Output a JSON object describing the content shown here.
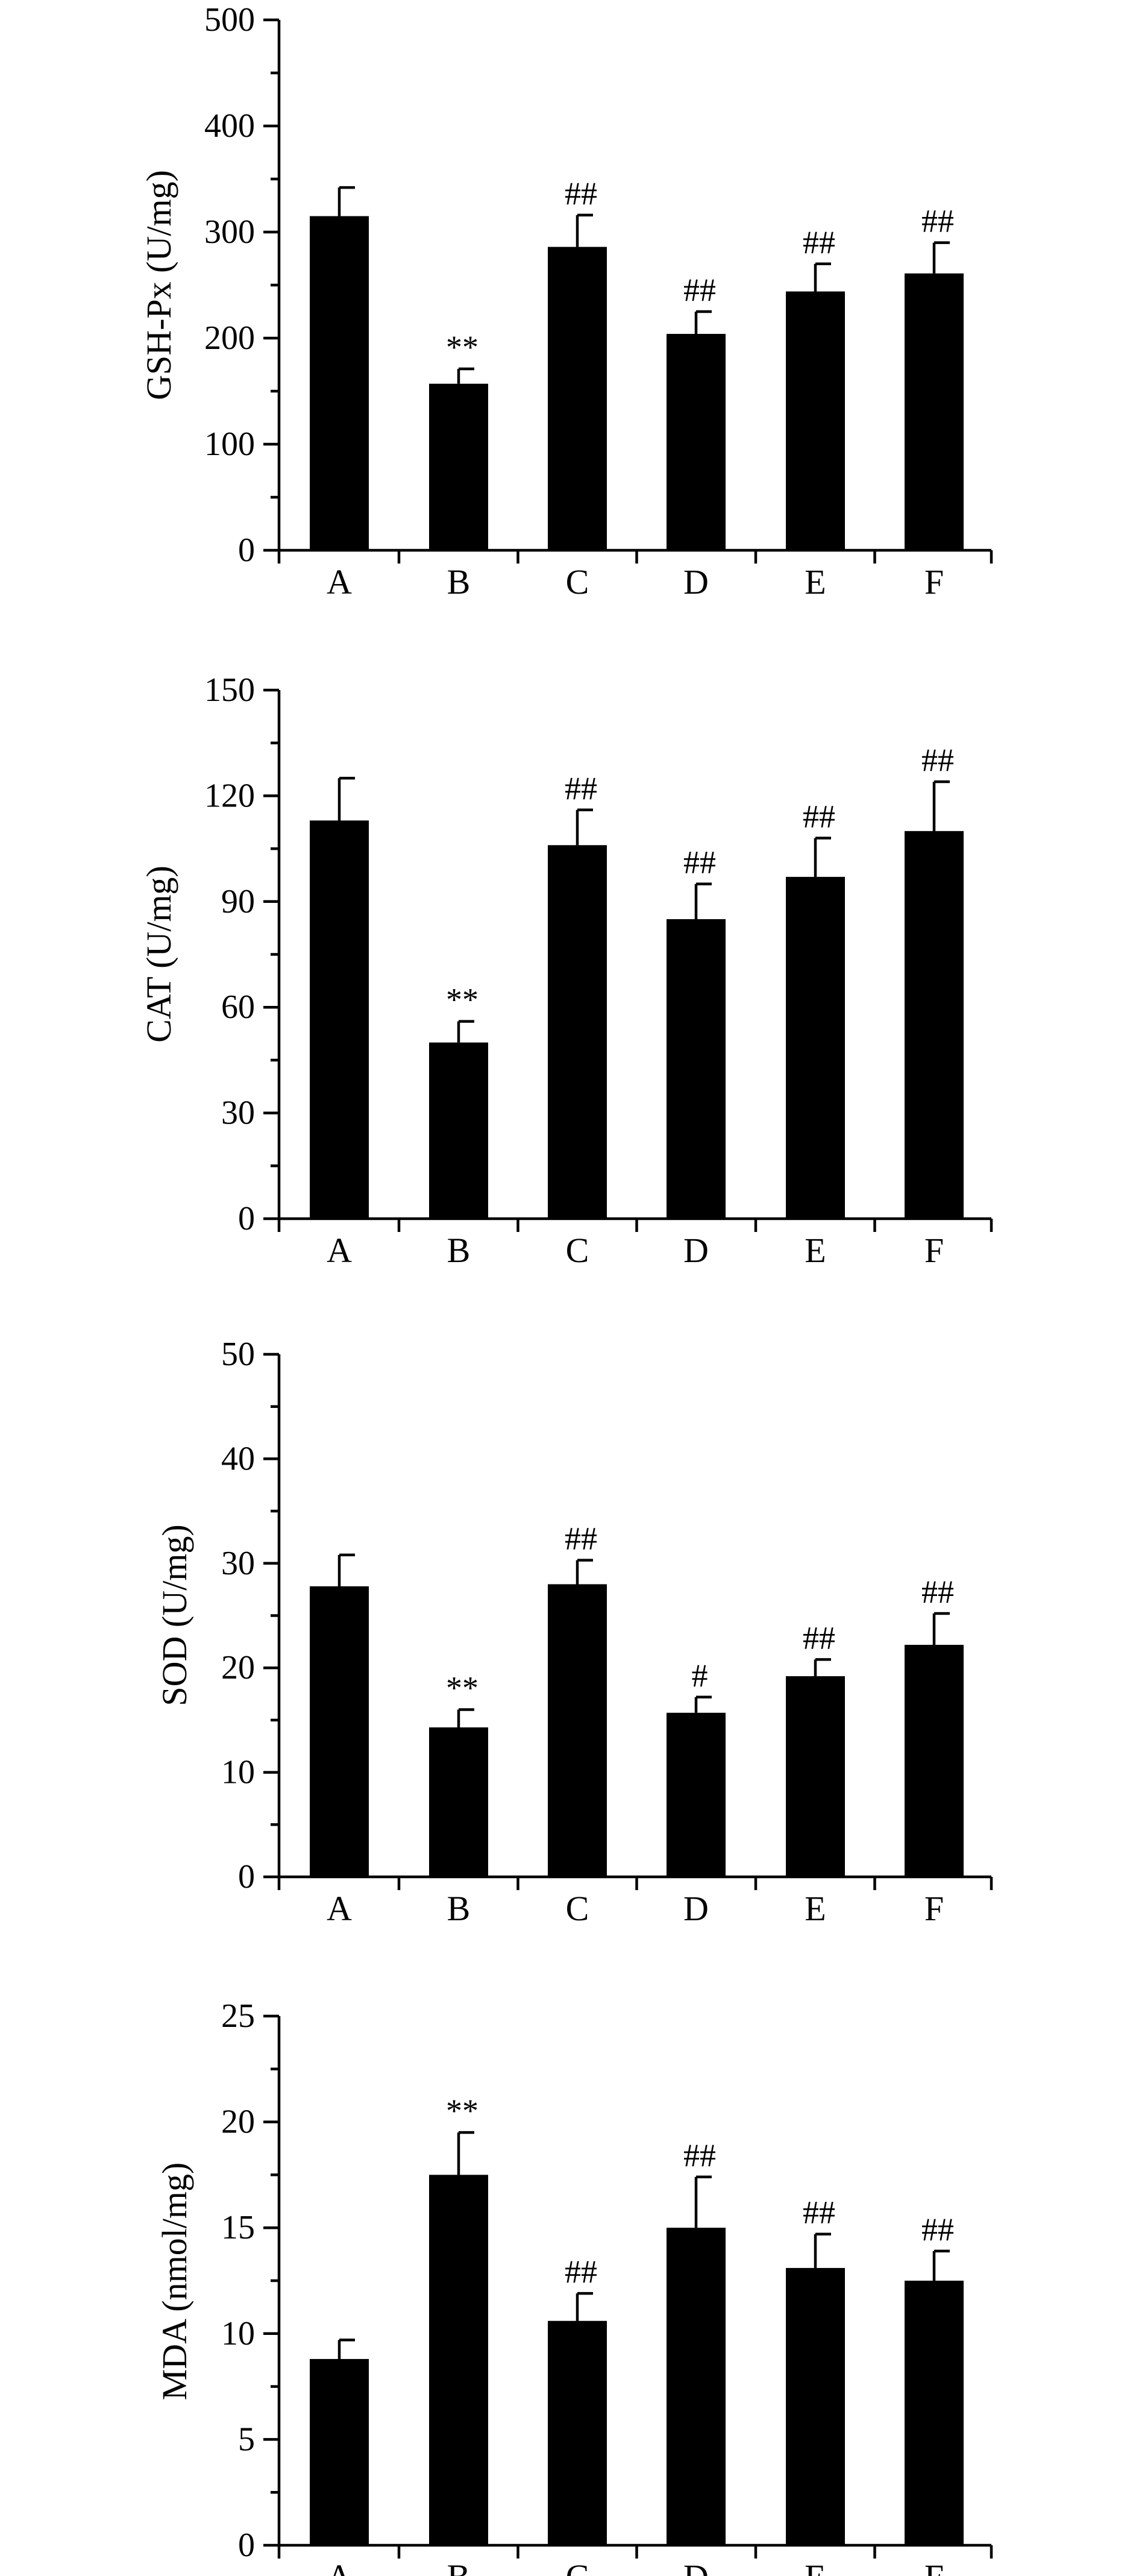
{
  "colors": {
    "bar": "#000000",
    "axis": "#000000",
    "background": "#ffffff"
  },
  "chart_data": [
    {
      "type": "bar",
      "title": "",
      "xlabel": "",
      "ylabel": "GSH-Px (U/mg)",
      "ylim": [
        0,
        500
      ],
      "yticks": [
        0,
        100,
        200,
        300,
        400,
        500
      ],
      "categories": [
        "A",
        "B",
        "C",
        "D",
        "E",
        "F"
      ],
      "values": [
        315,
        157,
        286,
        204,
        244,
        261
      ],
      "errors": [
        27,
        14,
        30,
        21,
        26,
        29
      ],
      "annotations": [
        "",
        "**",
        "##",
        "##",
        "##",
        "##"
      ],
      "grid": false,
      "legend": "none"
    },
    {
      "type": "bar",
      "title": "",
      "xlabel": "",
      "ylabel": "CAT (U/mg)",
      "ylim": [
        0,
        150
      ],
      "yticks": [
        0,
        30,
        60,
        90,
        120,
        150
      ],
      "categories": [
        "A",
        "B",
        "C",
        "D",
        "E",
        "F"
      ],
      "values": [
        113,
        50,
        106,
        85,
        97,
        110
      ],
      "errors": [
        12,
        6,
        10,
        10,
        11,
        14
      ],
      "annotations": [
        "",
        "**",
        "##",
        "##",
        "##",
        "##"
      ],
      "grid": false,
      "legend": "none"
    },
    {
      "type": "bar",
      "title": "",
      "xlabel": "",
      "ylabel": "SOD (U/mg)",
      "ylim": [
        0,
        50
      ],
      "yticks": [
        0,
        10,
        20,
        30,
        40,
        50
      ],
      "categories": [
        "A",
        "B",
        "C",
        "D",
        "E",
        "F"
      ],
      "values": [
        27.8,
        14.3,
        28.0,
        15.7,
        19.2,
        22.2
      ],
      "errors": [
        3.0,
        1.7,
        2.3,
        1.5,
        1.6,
        3.0
      ],
      "annotations": [
        "",
        "**",
        "##",
        "#",
        "##",
        "##"
      ],
      "grid": false,
      "legend": "none"
    },
    {
      "type": "bar",
      "title": "",
      "xlabel": "",
      "ylabel": "MDA (nmol/mg)",
      "ylim": [
        0,
        25
      ],
      "yticks": [
        0,
        5,
        10,
        15,
        20,
        25
      ],
      "categories": [
        "A",
        "B",
        "C",
        "D",
        "E",
        "F"
      ],
      "values": [
        8.8,
        17.5,
        10.6,
        15.0,
        13.1,
        12.5
      ],
      "errors": [
        0.9,
        2.0,
        1.3,
        2.4,
        1.6,
        1.4
      ],
      "annotations": [
        "",
        "**",
        "##",
        "##",
        "##",
        "##"
      ],
      "grid": false,
      "legend": "none"
    }
  ]
}
